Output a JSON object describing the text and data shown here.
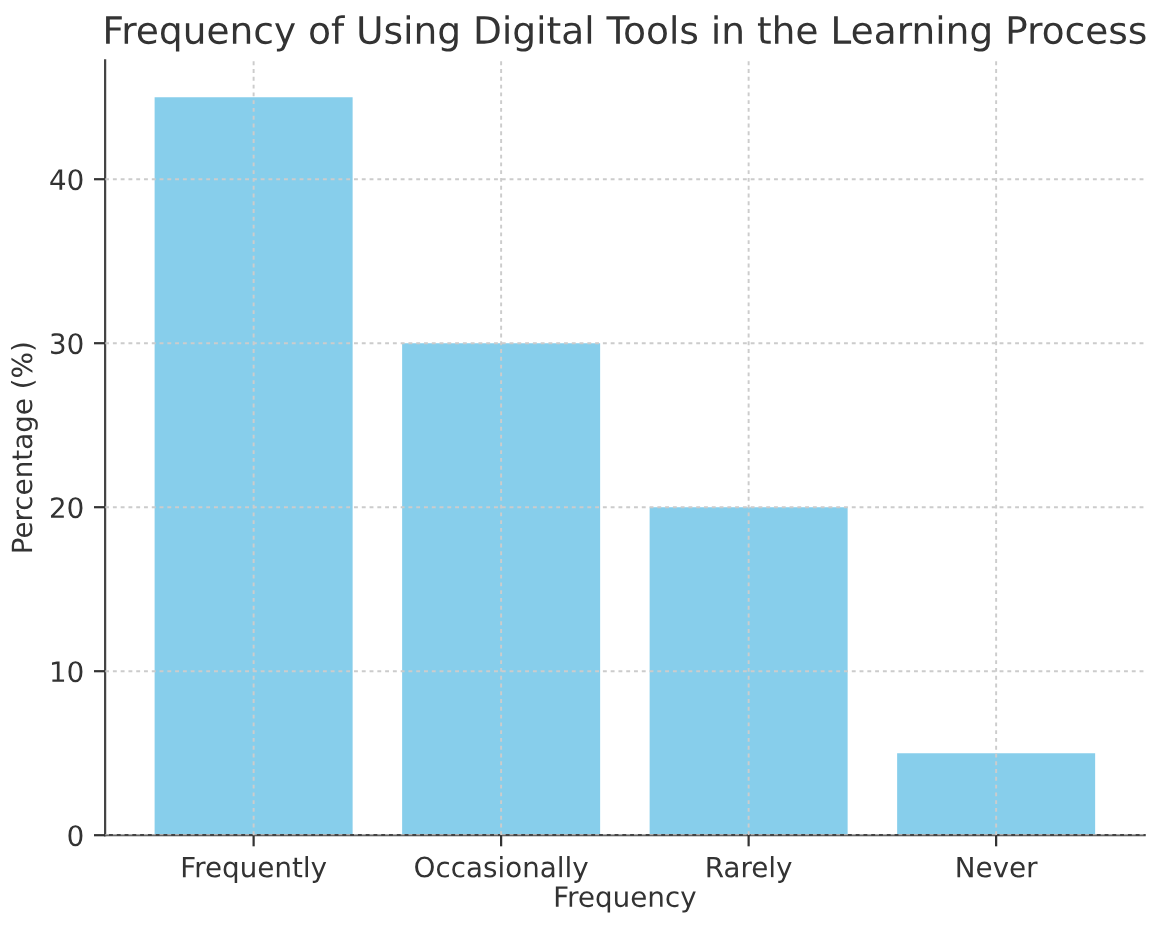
{
  "chart_data": {
    "type": "bar",
    "title": "Frequency of Using Digital Tools in the Learning Process",
    "xlabel": "Frequency",
    "ylabel": "Percentage (%)",
    "categories": [
      "Frequently",
      "Occasionally",
      "Rarely",
      "Never"
    ],
    "values": [
      45,
      30,
      20,
      5
    ],
    "color": "#87ceeb",
    "ylim": [
      0,
      47.25
    ],
    "yticks": [
      0,
      10,
      20,
      30,
      40
    ],
    "grid": true
  }
}
